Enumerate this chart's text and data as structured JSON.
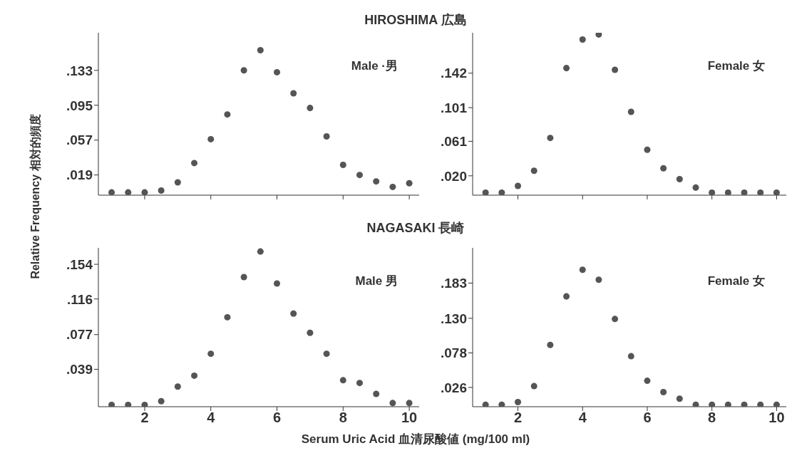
{
  "chart_data": [
    {
      "type": "scatter",
      "title": "HIROSHIMA 広島",
      "ylabel": "Relative Frequency 相対的頻度",
      "annotations": [
        "Male ·男"
      ],
      "x": [
        1,
        1.5,
        2,
        2.5,
        3,
        3.5,
        4,
        4.5,
        5,
        5.5,
        6,
        6.5,
        7,
        7.5,
        8,
        8.5,
        9,
        9.5,
        10
      ],
      "series": [
        {
          "color": "#555555",
          "values": [
            0,
            0,
            0,
            0.002,
            0.011,
            0.032,
            0.058,
            0.085,
            0.133,
            0.155,
            0.131,
            0.108,
            0.092,
            0.061,
            0.03,
            0.019,
            0.012,
            0.006,
            0.01
          ]
        }
      ],
      "xlim": [
        0.6,
        10.3
      ],
      "xticks": [
        {
          "value": 2,
          "label": null
        },
        {
          "value": 4,
          "label": null
        },
        {
          "value": 6,
          "label": null
        },
        {
          "value": 8,
          "label": null
        },
        {
          "value": 10,
          "label": null
        }
      ],
      "ylim": [
        -0.003,
        0.174
      ],
      "yticks": [
        {
          "value": 0.019,
          "label": ".019"
        },
        {
          "value": 0.057,
          "label": ".057"
        },
        {
          "value": 0.095,
          "label": ".095"
        },
        {
          "value": 0.133,
          "label": ".133"
        }
      ],
      "tick_labels": "y",
      "marker": "circle",
      "grid": false,
      "legend": false
    },
    {
      "type": "scatter",
      "annotations": [
        "Female 女"
      ],
      "x": [
        1,
        1.5,
        2,
        2.5,
        3,
        3.5,
        4,
        4.5,
        5,
        5.5,
        6,
        6.5,
        7,
        7.5,
        8,
        8.5,
        9,
        9.5,
        10
      ],
      "series": [
        {
          "color": "#555555",
          "values": [
            0,
            0,
            0.008,
            0.026,
            0.065,
            0.148,
            0.182,
            0.188,
            0.146,
            0.096,
            0.051,
            0.029,
            0.016,
            0.006,
            0,
            0,
            0,
            0,
            0
          ]
        }
      ],
      "xlim": [
        0.6,
        10.3
      ],
      "xticks": [
        {
          "value": 2,
          "label": null
        },
        {
          "value": 4,
          "label": null
        },
        {
          "value": 6,
          "label": null
        },
        {
          "value": 8,
          "label": null
        },
        {
          "value": 10,
          "label": null
        }
      ],
      "ylim": [
        -0.003,
        0.19
      ],
      "yticks": [
        {
          "value": 0.02,
          "label": ".020"
        },
        {
          "value": 0.061,
          "label": ".061"
        },
        {
          "value": 0.101,
          "label": ".101"
        },
        {
          "value": 0.142,
          "label": ".142"
        }
      ],
      "tick_labels": "y",
      "marker": "circle",
      "grid": false,
      "legend": false
    },
    {
      "type": "scatter",
      "title": "NAGASAKI 長崎",
      "xlabel": "Serum Uric Acid 血清尿酸値 (mg/100 ml)",
      "annotations": [
        "Male 男"
      ],
      "x": [
        1,
        1.5,
        2,
        2.5,
        3,
        3.5,
        4,
        4.5,
        5,
        5.5,
        6,
        6.5,
        7,
        7.5,
        8,
        8.5,
        9,
        9.5,
        10
      ],
      "series": [
        {
          "color": "#555555",
          "values": [
            0,
            0,
            0,
            0.004,
            0.02,
            0.032,
            0.056,
            0.096,
            0.14,
            0.168,
            0.133,
            0.1,
            0.079,
            0.056,
            0.027,
            0.024,
            0.012,
            0.002,
            0.002
          ]
        }
      ],
      "xlim": [
        0.6,
        10.3
      ],
      "xticks": [
        2,
        4,
        6,
        8,
        10
      ],
      "ylim": [
        -0.002,
        0.172
      ],
      "yticks": [
        {
          "value": 0.039,
          "label": ".039"
        },
        {
          "value": 0.077,
          "label": ".077"
        },
        {
          "value": 0.116,
          "label": ".116"
        },
        {
          "value": 0.154,
          "label": ".154"
        }
      ],
      "marker": "circle",
      "grid": false,
      "legend": false
    },
    {
      "type": "scatter",
      "annotations": [
        "Female 女"
      ],
      "x": [
        1,
        1.5,
        2,
        2.5,
        3,
        3.5,
        4,
        4.5,
        5,
        5.5,
        6,
        6.5,
        7,
        7.5,
        8,
        8.5,
        9,
        9.5,
        10
      ],
      "series": [
        {
          "color": "#555555",
          "values": [
            0,
            0,
            0.004,
            0.028,
            0.09,
            0.163,
            0.203,
            0.188,
            0.129,
            0.073,
            0.036,
            0.019,
            0.009,
            0,
            0,
            0,
            0,
            0,
            0
          ]
        }
      ],
      "xlim": [
        0.6,
        10.3
      ],
      "xticks": [
        2,
        4,
        6,
        8,
        10
      ],
      "ylim": [
        -0.003,
        0.236
      ],
      "yticks": [
        {
          "value": 0.026,
          "label": ".026"
        },
        {
          "value": 0.078,
          "label": ".078"
        },
        {
          "value": 0.13,
          "label": ".130"
        },
        {
          "value": 0.183,
          "label": ".183"
        }
      ],
      "marker": "circle",
      "grid": false,
      "legend": false
    }
  ]
}
